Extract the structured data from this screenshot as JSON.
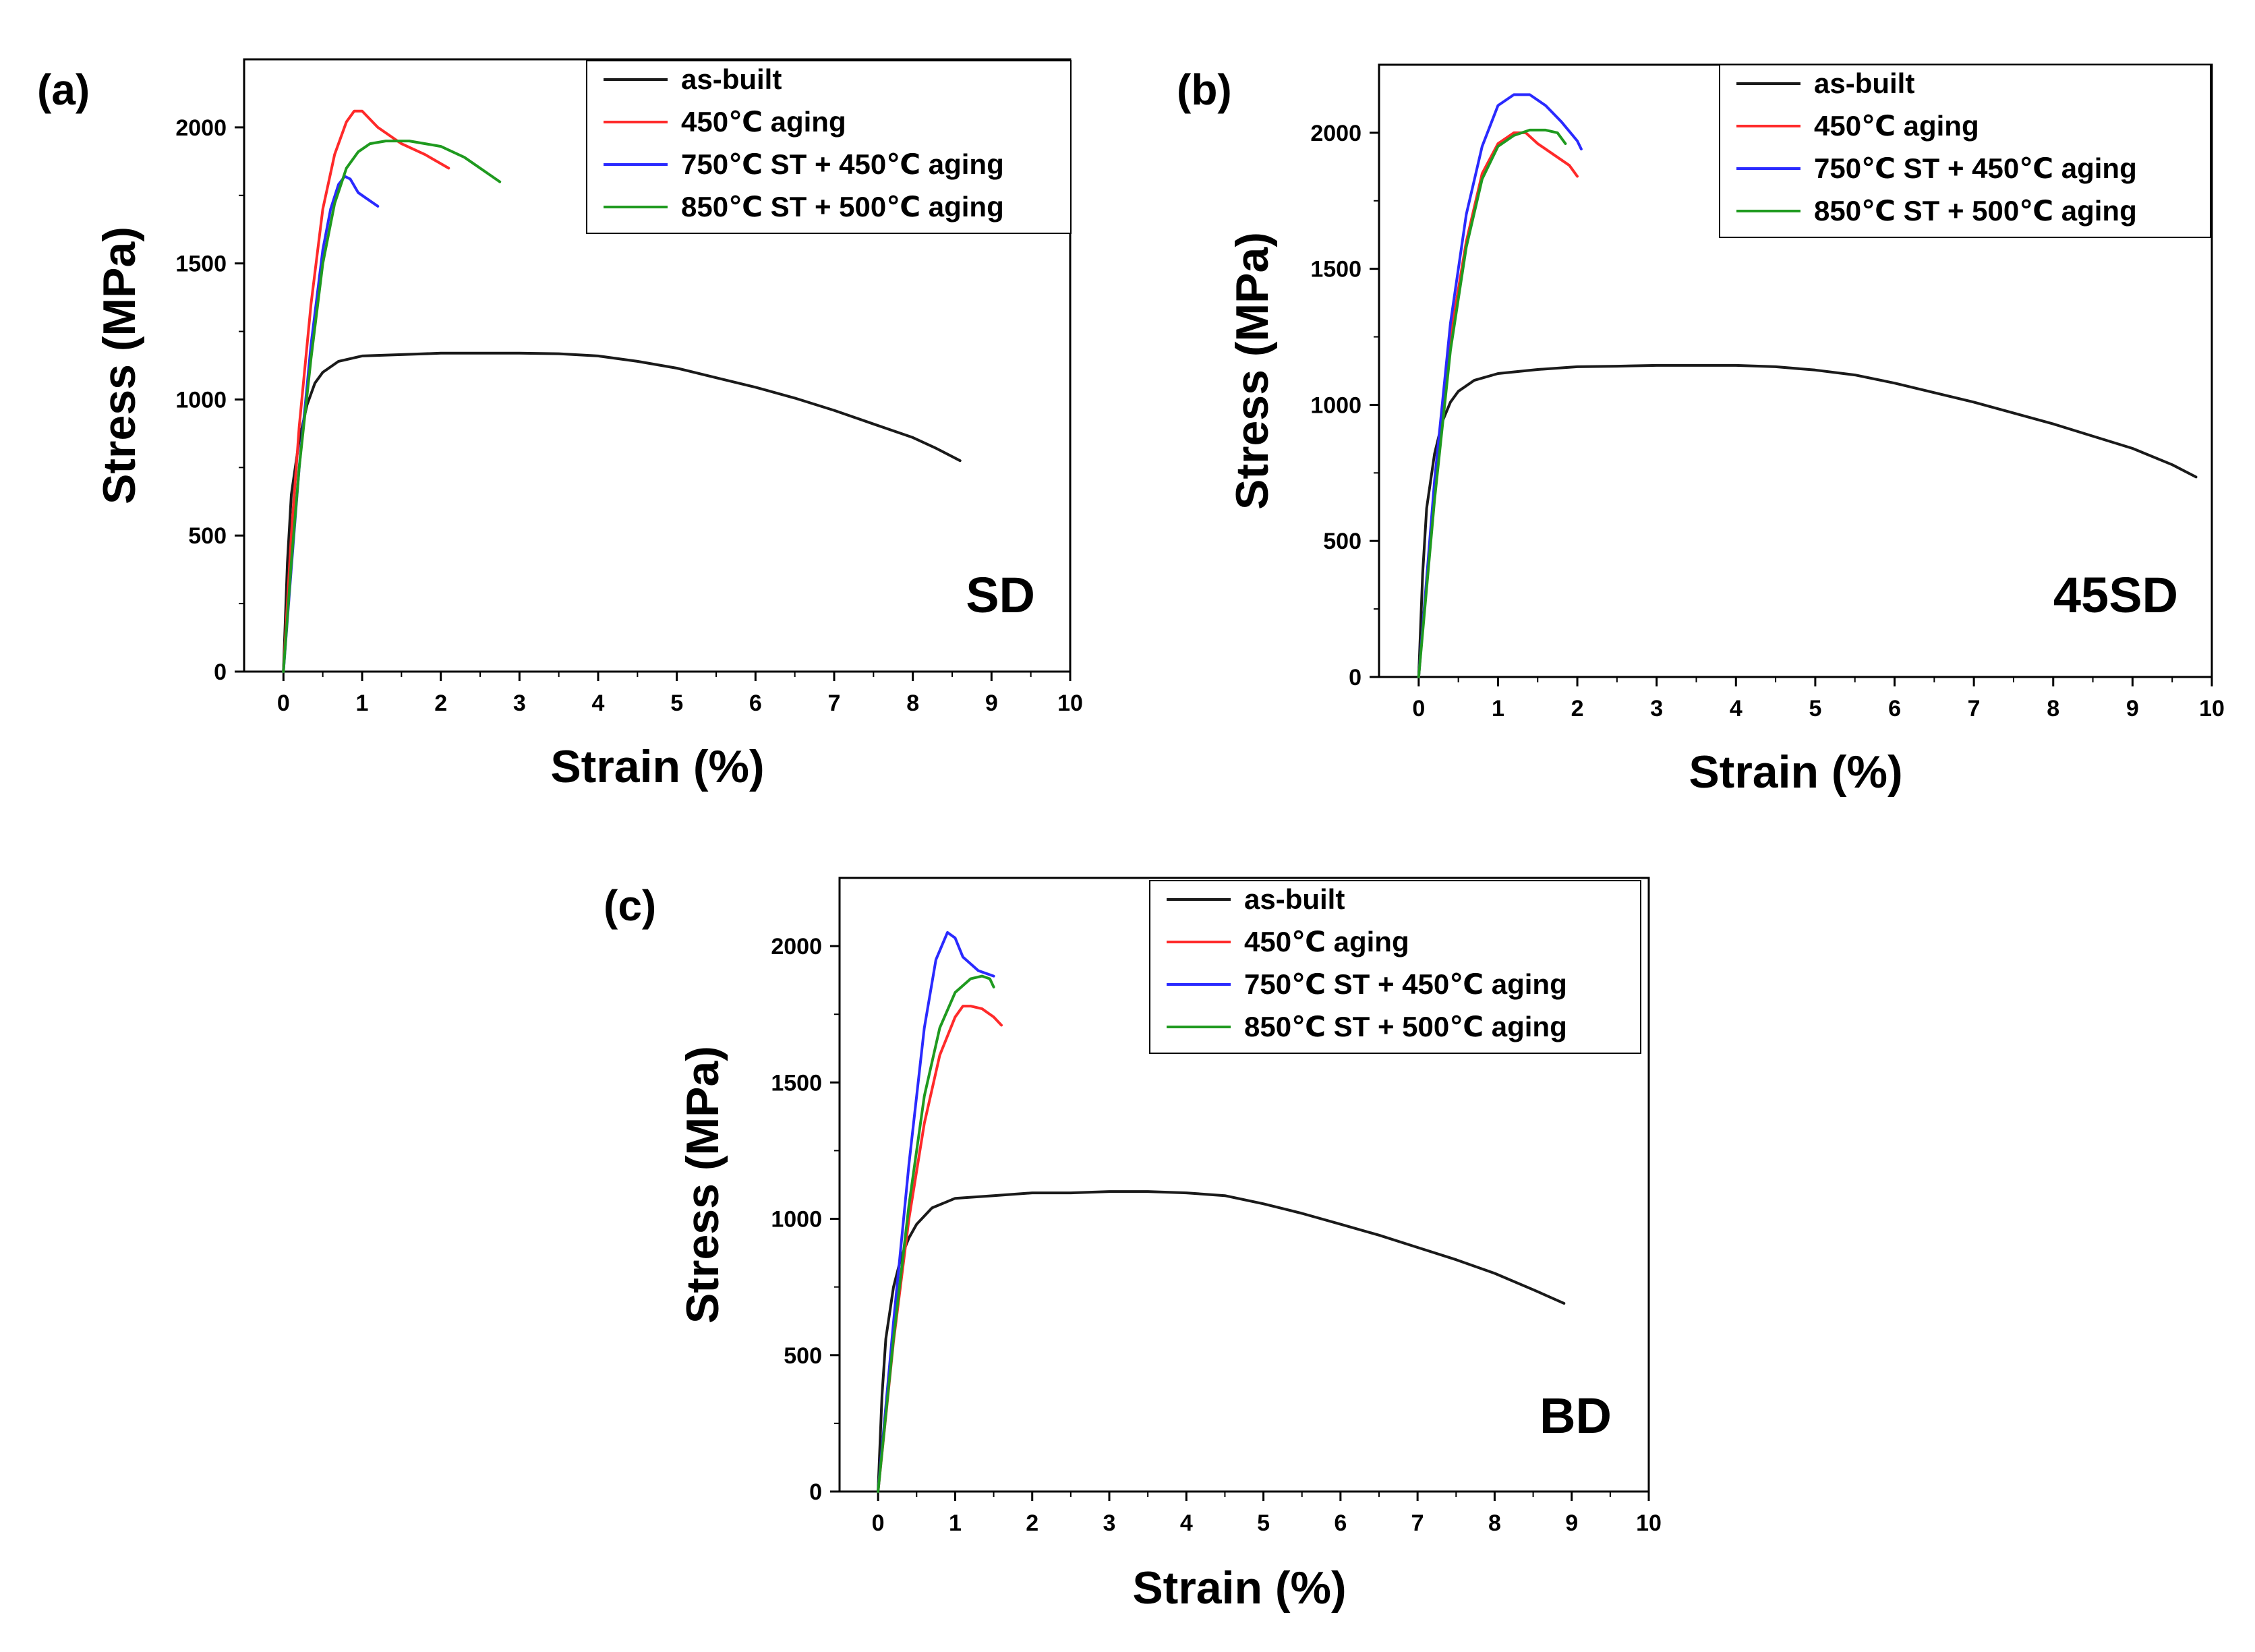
{
  "colors": {
    "as-built": "#1a1a1a",
    "450C aging": "#ff2a2a",
    "750C ST + 450C aging": "#2a2aff",
    "850C ST + 500C aging": "#1f9a1f"
  },
  "chart_data": [
    {
      "type": "line",
      "panel": "(a)",
      "direction_label": "SD",
      "xlabel": "Strain (%)",
      "ylabel": "Stress (MPa)",
      "xlim": [
        -0.5,
        10
      ],
      "ylim": [
        0,
        2250
      ],
      "xticks": [
        0,
        1,
        2,
        3,
        4,
        5,
        6,
        7,
        8,
        9,
        10
      ],
      "yticks": [
        0,
        500,
        1000,
        1500,
        2000
      ],
      "legend": [
        "as-built",
        "450℃ aging",
        "750℃ ST + 450℃ aging",
        "850℃ ST + 500℃ aging"
      ],
      "series": [
        {
          "name": "as-built",
          "color_key": "as-built",
          "x": [
            0,
            0.05,
            0.1,
            0.2,
            0.3,
            0.4,
            0.5,
            0.7,
            1.0,
            1.5,
            2.0,
            2.5,
            3.0,
            3.5,
            4.0,
            4.5,
            5.0,
            5.5,
            6.0,
            6.5,
            7.0,
            7.5,
            8.0,
            8.3,
            8.6
          ],
          "y": [
            0,
            400,
            650,
            850,
            980,
            1060,
            1100,
            1140,
            1160,
            1165,
            1170,
            1170,
            1170,
            1168,
            1160,
            1140,
            1115,
            1080,
            1045,
            1005,
            960,
            910,
            860,
            820,
            775
          ]
        },
        {
          "name": "450℃ aging",
          "color_key": "450C aging",
          "x": [
            0,
            0.1,
            0.2,
            0.35,
            0.5,
            0.65,
            0.8,
            0.9,
            1.0,
            1.2,
            1.5,
            1.8,
            2.1
          ],
          "y": [
            0,
            500,
            900,
            1350,
            1700,
            1900,
            2020,
            2060,
            2060,
            2000,
            1940,
            1900,
            1850
          ]
        },
        {
          "name": "750℃ ST + 450℃ aging",
          "color_key": "750C ST + 450C aging",
          "x": [
            0,
            0.1,
            0.2,
            0.35,
            0.5,
            0.6,
            0.7,
            0.78,
            0.85,
            0.95,
            1.05,
            1.2
          ],
          "y": [
            0,
            380,
            750,
            1200,
            1550,
            1700,
            1790,
            1820,
            1810,
            1760,
            1740,
            1710
          ]
        },
        {
          "name": "850℃ ST + 500℃ aging",
          "color_key": "850C ST + 500C aging",
          "x": [
            0,
            0.1,
            0.2,
            0.35,
            0.5,
            0.65,
            0.8,
            0.95,
            1.1,
            1.3,
            1.6,
            2.0,
            2.3,
            2.6,
            2.75
          ],
          "y": [
            0,
            400,
            750,
            1150,
            1500,
            1720,
            1850,
            1910,
            1940,
            1950,
            1950,
            1930,
            1890,
            1830,
            1800
          ]
        }
      ]
    },
    {
      "type": "line",
      "panel": "(b)",
      "direction_label": "45SD",
      "xlabel": "Strain (%)",
      "ylabel": "Stress (MPa)",
      "xlim": [
        -0.5,
        10
      ],
      "ylim": [
        0,
        2250
      ],
      "xticks": [
        0,
        1,
        2,
        3,
        4,
        5,
        6,
        7,
        8,
        9,
        10
      ],
      "yticks": [
        0,
        500,
        1000,
        1500,
        2000
      ],
      "legend": [
        "as-built",
        "450℃ aging",
        "750℃ ST + 450℃ aging",
        "850℃ ST + 500℃ aging"
      ],
      "series": [
        {
          "name": "as-built",
          "color_key": "as-built",
          "x": [
            0,
            0.05,
            0.1,
            0.2,
            0.3,
            0.4,
            0.5,
            0.7,
            1.0,
            1.5,
            2.0,
            2.5,
            3.0,
            3.5,
            4.0,
            4.5,
            5.0,
            5.5,
            6.0,
            6.5,
            7.0,
            7.5,
            8.0,
            8.5,
            9.0,
            9.5,
            9.8
          ],
          "y": [
            0,
            380,
            620,
            820,
            940,
            1010,
            1050,
            1090,
            1115,
            1130,
            1140,
            1142,
            1145,
            1145,
            1145,
            1140,
            1128,
            1110,
            1080,
            1045,
            1010,
            970,
            930,
            885,
            840,
            780,
            735
          ]
        },
        {
          "name": "450℃ aging",
          "color_key": "450C aging",
          "x": [
            0,
            0.2,
            0.4,
            0.6,
            0.8,
            1.0,
            1.2,
            1.35,
            1.5,
            1.7,
            1.9,
            2.0
          ],
          "y": [
            0,
            700,
            1250,
            1600,
            1850,
            1960,
            2000,
            2000,
            1960,
            1920,
            1880,
            1840
          ]
        },
        {
          "name": "750℃ ST + 450℃ aging",
          "color_key": "750C ST + 450C aging",
          "x": [
            0,
            0.2,
            0.4,
            0.6,
            0.8,
            1.0,
            1.2,
            1.4,
            1.6,
            1.8,
            2.0,
            2.05
          ],
          "y": [
            0,
            720,
            1300,
            1700,
            1950,
            2100,
            2140,
            2140,
            2100,
            2040,
            1970,
            1940
          ]
        },
        {
          "name": "850℃ ST + 500℃ aging",
          "color_key": "850C ST + 500C aging",
          "x": [
            0,
            0.2,
            0.4,
            0.6,
            0.8,
            1.0,
            1.2,
            1.4,
            1.6,
            1.75,
            1.85
          ],
          "y": [
            0,
            650,
            1200,
            1580,
            1830,
            1950,
            1990,
            2010,
            2010,
            2000,
            1960
          ]
        }
      ]
    },
    {
      "type": "line",
      "panel": "(c)",
      "direction_label": "BD",
      "xlabel": "Strain (%)",
      "ylabel": "Stress (MPa)",
      "xlim": [
        -0.5,
        10
      ],
      "ylim": [
        0,
        2250
      ],
      "xticks": [
        0,
        1,
        2,
        3,
        4,
        5,
        6,
        7,
        8,
        9,
        10
      ],
      "yticks": [
        0,
        500,
        1000,
        1500,
        2000
      ],
      "legend": [
        "as-built",
        "450℃ aging",
        "750℃ ST + 450℃ aging",
        "850℃ ST + 500℃ aging"
      ],
      "series": [
        {
          "name": "as-built",
          "color_key": "as-built",
          "x": [
            0,
            0.05,
            0.1,
            0.2,
            0.3,
            0.4,
            0.5,
            0.7,
            1.0,
            1.5,
            2.0,
            2.5,
            3.0,
            3.5,
            4.0,
            4.5,
            5.0,
            5.5,
            6.0,
            6.5,
            7.0,
            7.5,
            8.0,
            8.5,
            8.9
          ],
          "y": [
            0,
            350,
            560,
            750,
            860,
            930,
            980,
            1040,
            1075,
            1085,
            1095,
            1095,
            1100,
            1100,
            1095,
            1085,
            1055,
            1020,
            980,
            940,
            895,
            850,
            800,
            740,
            690
          ]
        },
        {
          "name": "450℃ aging",
          "color_key": "450C aging",
          "x": [
            0,
            0.2,
            0.4,
            0.6,
            0.8,
            1.0,
            1.1,
            1.2,
            1.35,
            1.5,
            1.6
          ],
          "y": [
            0,
            550,
            1000,
            1350,
            1600,
            1740,
            1780,
            1780,
            1770,
            1740,
            1710
          ]
        },
        {
          "name": "750℃ ST + 450℃ aging",
          "color_key": "750C ST + 450C aging",
          "x": [
            0,
            0.2,
            0.4,
            0.6,
            0.75,
            0.9,
            1.0,
            1.1,
            1.3,
            1.5
          ],
          "y": [
            0,
            620,
            1200,
            1700,
            1950,
            2050,
            2030,
            1960,
            1910,
            1890
          ]
        },
        {
          "name": "850℃ ST + 500℃ aging",
          "color_key": "850C ST + 500C aging",
          "x": [
            0,
            0.2,
            0.4,
            0.6,
            0.8,
            1.0,
            1.2,
            1.35,
            1.45,
            1.5
          ],
          "y": [
            0,
            560,
            1050,
            1450,
            1700,
            1830,
            1880,
            1890,
            1880,
            1850
          ]
        }
      ]
    }
  ]
}
